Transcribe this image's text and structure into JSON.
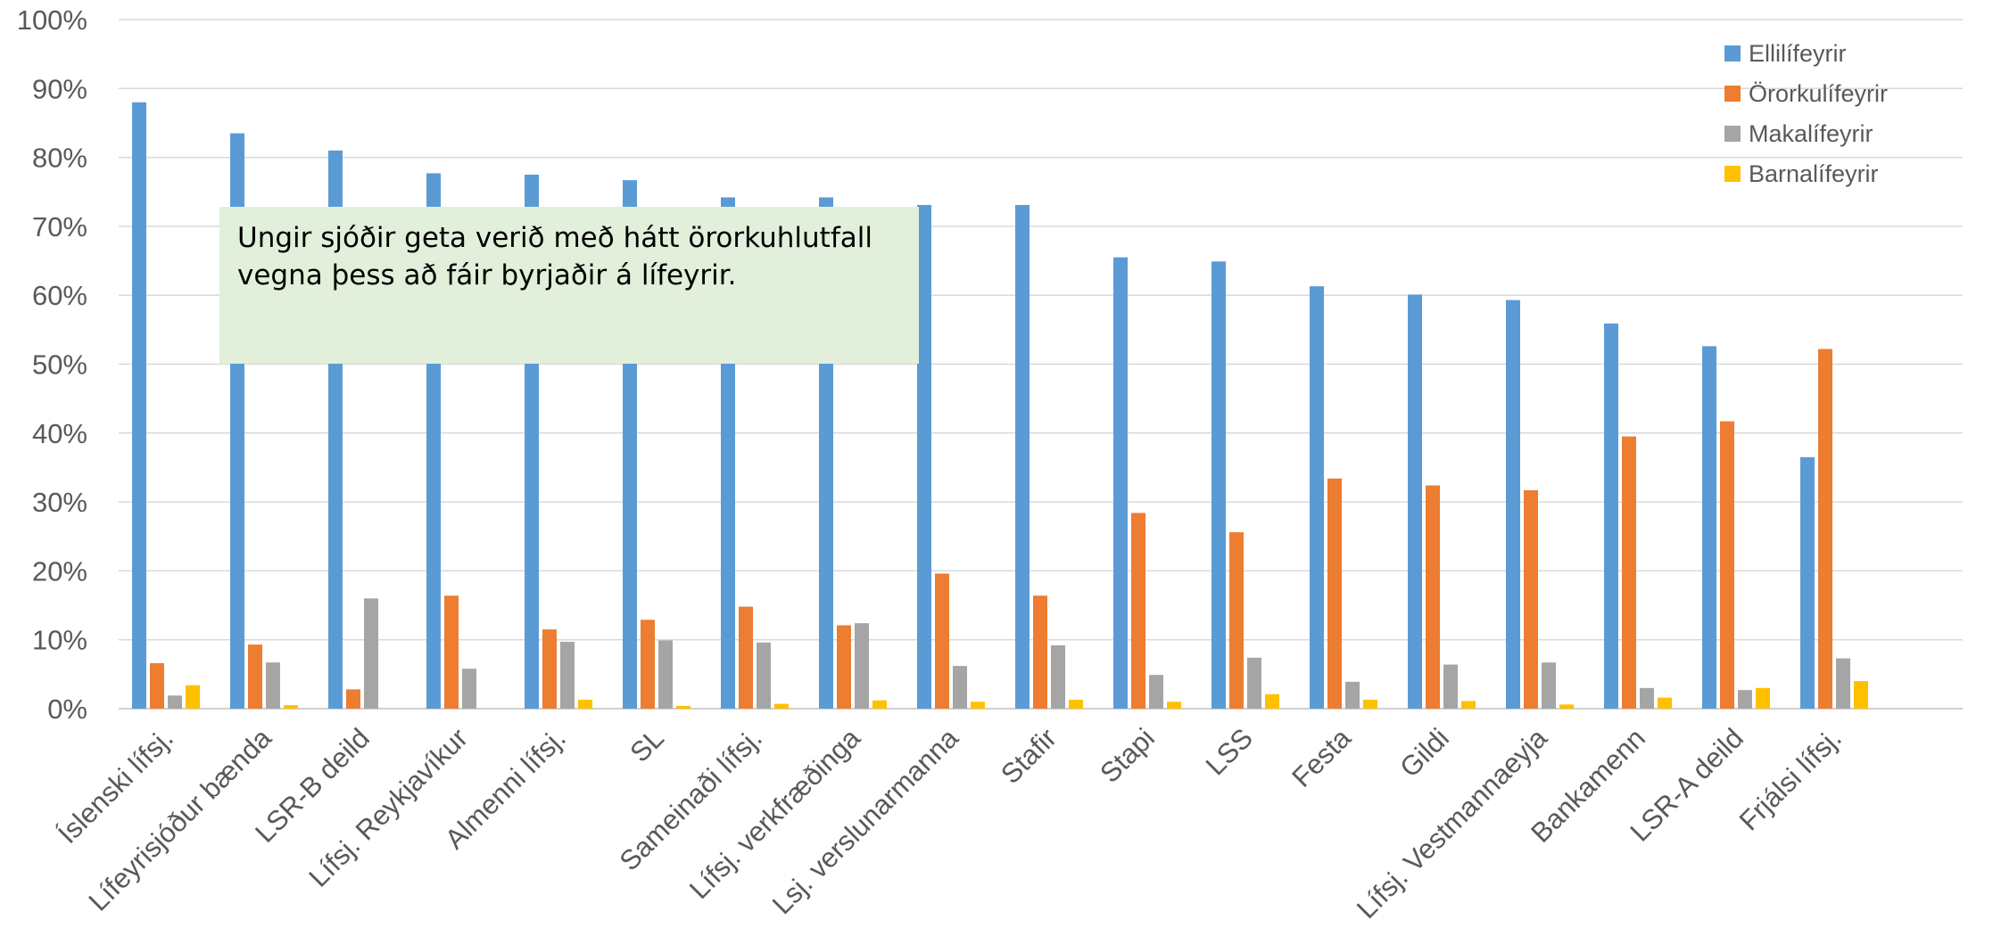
{
  "chart_data": {
    "type": "bar",
    "title": "",
    "xlabel": "",
    "ylabel": "",
    "ylim": [
      0,
      100
    ],
    "yticks": [
      "0%",
      "10%",
      "20%",
      "30%",
      "40%",
      "50%",
      "60%",
      "70%",
      "80%",
      "90%",
      "100%"
    ],
    "grid": true,
    "legend_position": "top-right",
    "categories": [
      "Íslenski lífsj.",
      "Lífeyrisjóður bænda",
      "LSR-B deild",
      "Lífsj. Reykjavíkur",
      "Almenni lífsj.",
      "SL",
      "Sameinaði lífsj.",
      "Lífsj. verkfræðinga",
      "Lsj. verslunarmanna",
      "Stafir",
      "Stapi",
      "LSS",
      "Festa",
      "Gildi",
      "Lífsj. Vestmannaeyja",
      "Bankamenn",
      "LSR-A deild",
      "Frjálsi lífsj."
    ],
    "series": [
      {
        "name": "Ellilífeyrir",
        "color": "#5b9bd5",
        "values": [
          88,
          83.5,
          81,
          77.7,
          77.5,
          76.7,
          74.2,
          74.2,
          73.1,
          73.1,
          65.5,
          64.9,
          61.3,
          60.1,
          59.3,
          55.9,
          52.6,
          36.5
        ]
      },
      {
        "name": "Örorkulífeyrir",
        "color": "#ed7d31",
        "values": [
          6.6,
          9.3,
          2.8,
          16.4,
          11.5,
          12.9,
          14.8,
          12.1,
          19.6,
          16.4,
          28.4,
          25.6,
          33.4,
          32.4,
          31.7,
          39.5,
          41.7,
          52.2
        ]
      },
      {
        "name": "Makalífeyrir",
        "color": "#a5a5a5",
        "values": [
          1.9,
          6.7,
          16.0,
          5.8,
          9.7,
          9.9,
          9.6,
          12.4,
          6.2,
          9.2,
          4.9,
          7.4,
          3.9,
          6.4,
          6.7,
          3.0,
          2.7,
          7.3
        ]
      },
      {
        "name": "Barnalífeyrir",
        "color": "#ffc000",
        "values": [
          3.4,
          0.5,
          0,
          0,
          1.3,
          0.4,
          0.7,
          1.2,
          1.0,
          1.3,
          1.0,
          2.1,
          1.3,
          1.1,
          0.6,
          1.6,
          3.0,
          4.0
        ]
      }
    ],
    "annotation": {
      "lines": [
        "Ungir sjóðir geta verið með hátt örorkuhlutfall",
        "vegna þess að fáir byrjaðir á lífeyrir."
      ],
      "background": "#e2efda"
    }
  }
}
